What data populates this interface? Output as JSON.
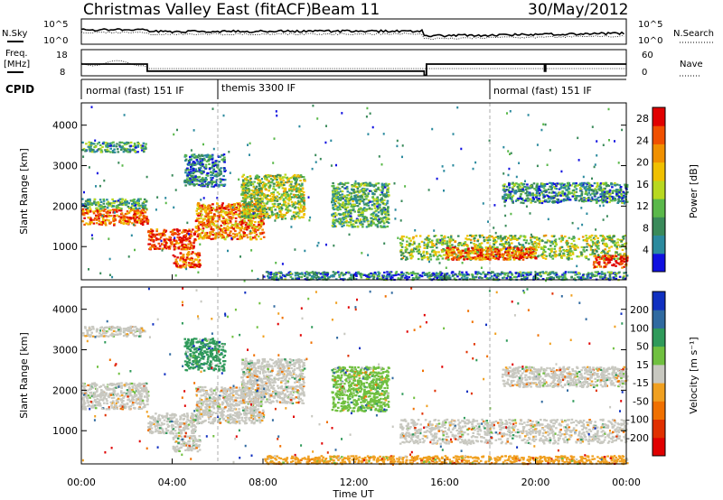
{
  "title": {
    "station": "Christmas Valley East (fitACF)",
    "beam": "Beam 11",
    "date": "30/May/2012"
  },
  "header_panels": {
    "nsky_label": "N.Sky",
    "nsearch_label": "N.Search",
    "noise_ticks": [
      "10^5",
      "10^0"
    ],
    "freq_label_line1": "Freq.",
    "freq_label_line2": "[MHz]",
    "freq_ticks": [
      "18",
      "8"
    ],
    "nave_label": "Nave",
    "nave_ticks": [
      "60",
      "0"
    ],
    "cpid_label": "CPID",
    "cpid_segments": [
      {
        "label": "normal (fast) 151 IF",
        "start_h": 0,
        "end_h": 6
      },
      {
        "label": "themis 3300 IF",
        "start_h": 6,
        "end_h": 18
      },
      {
        "label": "normal (fast) 151 IF",
        "start_h": 18,
        "end_h": 24
      }
    ]
  },
  "panels": {
    "power": {
      "ylabel": "Slant Range [km]",
      "colorbar_label": "Power [dB]"
    },
    "velocity": {
      "ylabel": "Slant Range [km]",
      "colorbar_label": "Velocity [m s⁻¹]"
    }
  },
  "xaxis": {
    "label": "Time UT",
    "ticks": [
      "00:00",
      "04:00",
      "08:00",
      "12:00",
      "16:00",
      "20:00",
      "00:00"
    ]
  },
  "chart_data": [
    {
      "type": "heatmap",
      "title": "Christmas Valley East (fitACF) Beam 11 30/May/2012",
      "variable": "power",
      "x_unit": "hours UT",
      "xlim": [
        0,
        24
      ],
      "ylabel": "Slant Range [km]",
      "ylim": [
        180,
        4550
      ],
      "yticks": [
        1000,
        2000,
        3000,
        4000
      ],
      "colorbar": {
        "label": "Power [dB]",
        "ticks": [
          4,
          8,
          12,
          16,
          20,
          24,
          28
        ],
        "range": [
          0,
          30
        ],
        "colors": [
          "#1010e0",
          "#2b8a9e",
          "#3a8a5a",
          "#5ab84a",
          "#b8d820",
          "#f0c000",
          "#f09000",
          "#f05000",
          "#e00000"
        ]
      },
      "echo_regions": [
        {
          "t0": 0.0,
          "t1": 2.9,
          "r0": 1550,
          "r1": 1950,
          "power_db": 24
        },
        {
          "t0": 0.0,
          "t1": 2.9,
          "r0": 1950,
          "r1": 2200,
          "power_db": 10
        },
        {
          "t0": 0.0,
          "t1": 2.8,
          "r0": 3350,
          "r1": 3600,
          "power_db": 9
        },
        {
          "t0": 2.9,
          "t1": 5.0,
          "r0": 950,
          "r1": 1450,
          "power_db": 26
        },
        {
          "t0": 4.0,
          "t1": 5.2,
          "r0": 500,
          "r1": 900,
          "power_db": 25
        },
        {
          "t0": 5.0,
          "t1": 8.0,
          "r0": 1200,
          "r1": 2100,
          "power_db": 22
        },
        {
          "t0": 7.0,
          "t1": 9.8,
          "r0": 1700,
          "r1": 2800,
          "power_db": 14
        },
        {
          "t0": 4.5,
          "t1": 6.3,
          "r0": 2500,
          "r1": 3300,
          "power_db": 6
        },
        {
          "t0": 11.0,
          "t1": 13.5,
          "r0": 1500,
          "r1": 2600,
          "power_db": 10
        },
        {
          "t0": 14.0,
          "t1": 24.0,
          "r0": 700,
          "r1": 1300,
          "power_db": 14
        },
        {
          "t0": 16.0,
          "t1": 20.0,
          "r0": 700,
          "r1": 1000,
          "power_db": 24
        },
        {
          "t0": 22.5,
          "t1": 24.0,
          "r0": 500,
          "r1": 800,
          "power_db": 26
        },
        {
          "t0": 18.5,
          "t1": 24.0,
          "r0": 2100,
          "r1": 2600,
          "power_db": 8
        },
        {
          "t0": 8.0,
          "t1": 24.0,
          "r0": 200,
          "r1": 400,
          "power_db": 7
        }
      ]
    },
    {
      "type": "heatmap",
      "variable": "velocity",
      "x_unit": "hours UT",
      "xlim": [
        0,
        24
      ],
      "ylabel": "Slant Range [km]",
      "ylim": [
        180,
        4550
      ],
      "yticks": [
        1000,
        2000,
        3000,
        4000
      ],
      "colorbar": {
        "label": "Velocity [m s⁻¹]",
        "ticks": [
          200,
          100,
          50,
          15,
          -15,
          -50,
          -100,
          -200
        ],
        "range": [
          -250,
          250
        ],
        "colors": [
          "#1030c0",
          "#306aa0",
          "#2f9a5a",
          "#70c040",
          "#c8c8c0",
          "#f0a020",
          "#f07000",
          "#e03000",
          "#e00000"
        ]
      },
      "echo_regions": [
        {
          "t0": 0.0,
          "t1": 2.9,
          "r0": 1550,
          "r1": 2200,
          "velocity": 0
        },
        {
          "t0": 0.0,
          "t1": 2.8,
          "r0": 3350,
          "r1": 3600,
          "velocity": 0
        },
        {
          "t0": 2.9,
          "t1": 5.0,
          "r0": 950,
          "r1": 1450,
          "velocity": 0
        },
        {
          "t0": 4.0,
          "t1": 5.2,
          "r0": 500,
          "r1": 900,
          "velocity": 0
        },
        {
          "t0": 5.0,
          "t1": 8.0,
          "r0": 1200,
          "r1": 2100,
          "velocity": 0
        },
        {
          "t0": 7.0,
          "t1": 9.8,
          "r0": 1700,
          "r1": 2800,
          "velocity": 0
        },
        {
          "t0": 4.5,
          "t1": 6.3,
          "r0": 2500,
          "r1": 3300,
          "velocity": 120
        },
        {
          "t0": 11.0,
          "t1": 13.5,
          "r0": 1500,
          "r1": 2600,
          "velocity": 40
        },
        {
          "t0": 14.0,
          "t1": 24.0,
          "r0": 700,
          "r1": 1300,
          "velocity": 0
        },
        {
          "t0": 18.5,
          "t1": 24.0,
          "r0": 2100,
          "r1": 2600,
          "velocity": 0
        },
        {
          "t0": 8.0,
          "t1": 24.0,
          "r0": 200,
          "r1": 400,
          "velocity": -60
        }
      ]
    }
  ]
}
